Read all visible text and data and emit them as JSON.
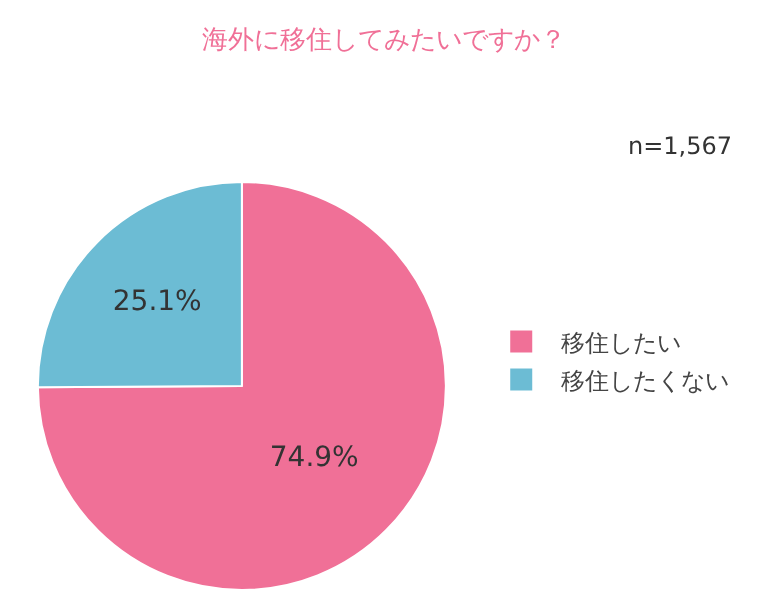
{
  "chart_data": {
    "type": "pie",
    "title": "海外に移住してみたいですか？",
    "categories": [
      "移住したい",
      "移住したくない"
    ],
    "values": [
      74.9,
      25.1
    ],
    "colors": [
      "#f07097",
      "#6cbcd4"
    ],
    "value_labels": [
      "74.9%",
      "25.1%"
    ],
    "annotations": [
      "n=1,567"
    ],
    "legend": "right"
  }
}
